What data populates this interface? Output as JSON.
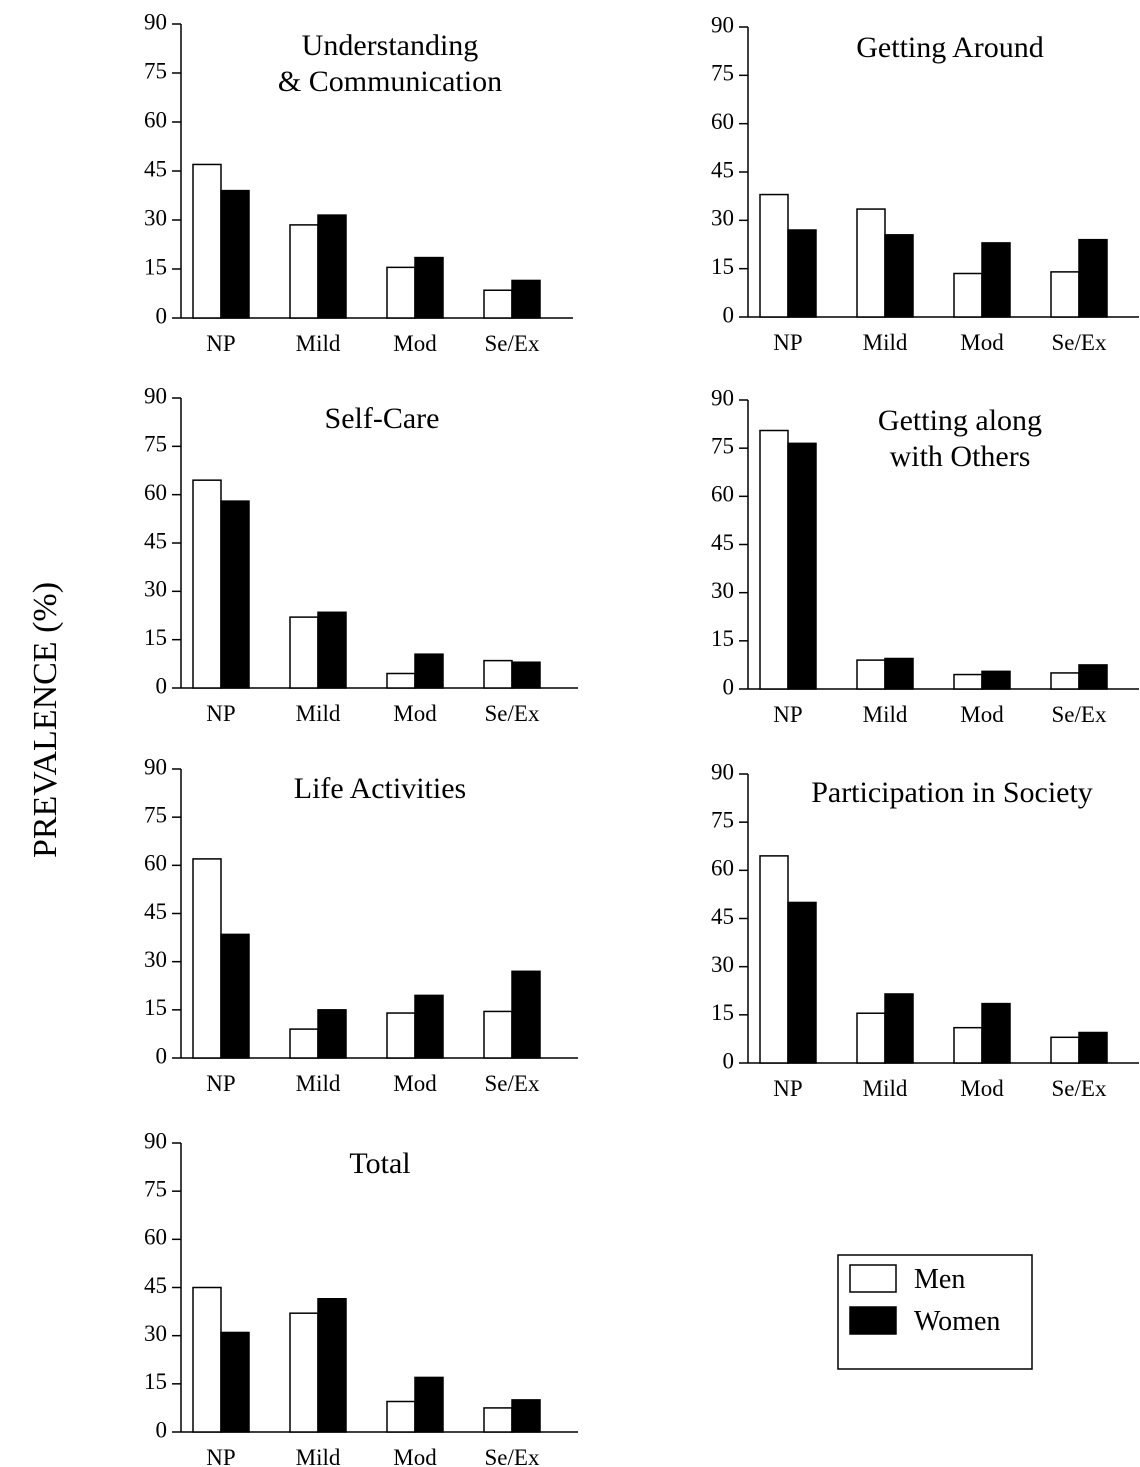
{
  "figure": {
    "ylabel": "PREVALENCE (%)",
    "legend": {
      "men": "Men",
      "women": "Women"
    },
    "colors": {
      "men": "#ffffff",
      "women": "#000000",
      "stroke": "#000000"
    }
  },
  "chart_data": [
    {
      "type": "bar",
      "title_lines": [
        "Understanding",
        "& Communication"
      ],
      "categories": [
        "NP",
        "Mild",
        "Mod",
        "Se/Ex"
      ],
      "ylim": [
        0,
        90
      ],
      "yticks": [
        0,
        15,
        30,
        45,
        60,
        75,
        90
      ],
      "series": [
        {
          "name": "Men",
          "values": [
            47,
            28.5,
            15.5,
            8.5
          ]
        },
        {
          "name": "Women",
          "values": [
            39,
            31.5,
            18.5,
            11.5
          ]
        }
      ]
    },
    {
      "type": "bar",
      "title_lines": [
        "Getting Around"
      ],
      "categories": [
        "NP",
        "Mild",
        "Mod",
        "Se/Ex"
      ],
      "ylim": [
        0,
        90
      ],
      "yticks": [
        0,
        15,
        30,
        45,
        60,
        75,
        90
      ],
      "series": [
        {
          "name": "Men",
          "values": [
            38,
            33.5,
            13.5,
            14
          ]
        },
        {
          "name": "Women",
          "values": [
            27,
            25.5,
            23,
            24
          ]
        }
      ]
    },
    {
      "type": "bar",
      "title_lines": [
        "Self-Care"
      ],
      "categories": [
        "NP",
        "Mild",
        "Mod",
        "Se/Ex"
      ],
      "ylim": [
        0,
        90
      ],
      "yticks": [
        0,
        15,
        30,
        45,
        60,
        75,
        90
      ],
      "series": [
        {
          "name": "Men",
          "values": [
            64.5,
            22,
            4.5,
            8.5
          ]
        },
        {
          "name": "Women",
          "values": [
            58,
            23.5,
            10.5,
            8
          ]
        }
      ]
    },
    {
      "type": "bar",
      "title_lines": [
        "Getting along",
        "with Others"
      ],
      "categories": [
        "NP",
        "Mild",
        "Mod",
        "Se/Ex"
      ],
      "ylim": [
        0,
        90
      ],
      "yticks": [
        0,
        15,
        30,
        45,
        60,
        75,
        90
      ],
      "series": [
        {
          "name": "Men",
          "values": [
            80.5,
            9,
            4.5,
            5
          ]
        },
        {
          "name": "Women",
          "values": [
            76.5,
            9.5,
            5.5,
            7.5
          ]
        }
      ]
    },
    {
      "type": "bar",
      "title_lines": [
        "Life Activities"
      ],
      "categories": [
        "NP",
        "Mild",
        "Mod",
        "Se/Ex"
      ],
      "ylim": [
        0,
        90
      ],
      "yticks": [
        0,
        15,
        30,
        45,
        60,
        75,
        90
      ],
      "series": [
        {
          "name": "Men",
          "values": [
            62,
            9,
            14,
            14.5
          ]
        },
        {
          "name": "Women",
          "values": [
            38.5,
            15,
            19.5,
            27
          ]
        }
      ]
    },
    {
      "type": "bar",
      "title_lines": [
        "Participation in Society"
      ],
      "categories": [
        "NP",
        "Mild",
        "Mod",
        "Se/Ex"
      ],
      "ylim": [
        0,
        90
      ],
      "yticks": [
        0,
        15,
        30,
        45,
        60,
        75,
        90
      ],
      "series": [
        {
          "name": "Men",
          "values": [
            64.5,
            15.5,
            11,
            8
          ]
        },
        {
          "name": "Women",
          "values": [
            50,
            21.5,
            18.5,
            9.5
          ]
        }
      ]
    },
    {
      "type": "bar",
      "title_lines": [
        "Total"
      ],
      "categories": [
        "NP",
        "Mild",
        "Mod",
        "Se/Ex"
      ],
      "ylim": [
        0,
        90
      ],
      "yticks": [
        0,
        15,
        30,
        45,
        60,
        75,
        90
      ],
      "series": [
        {
          "name": "Men",
          "values": [
            45,
            37,
            9.5,
            7.5
          ]
        },
        {
          "name": "Women",
          "values": [
            31,
            41.5,
            17,
            10
          ]
        }
      ]
    }
  ]
}
